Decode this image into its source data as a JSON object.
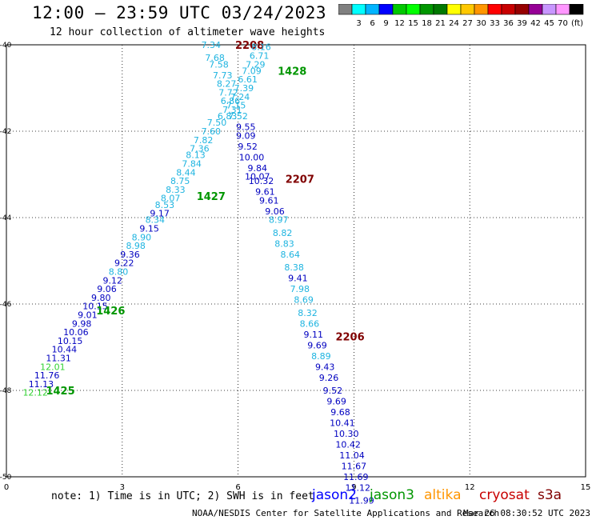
{
  "header": {
    "title": "12:00 – 23:59 UTC 03/24/2023",
    "subtitle": "12 hour collection of altimeter wave heights"
  },
  "color_scale": {
    "unit_label": "(ft)",
    "bins": [
      {
        "label": "",
        "color": "#808080"
      },
      {
        "label": "3",
        "color": "#00ffff"
      },
      {
        "label": "6",
        "color": "#00b4ff"
      },
      {
        "label": "9",
        "color": "#0000ff"
      },
      {
        "label": "12",
        "color": "#00c800"
      },
      {
        "label": "15",
        "color": "#00ff00"
      },
      {
        "label": "18",
        "color": "#009600"
      },
      {
        "label": "21",
        "color": "#007800"
      },
      {
        "label": "24",
        "color": "#ffff00"
      },
      {
        "label": "27",
        "color": "#ffc800"
      },
      {
        "label": "30",
        "color": "#ff9600"
      },
      {
        "label": "33",
        "color": "#ff0000"
      },
      {
        "label": "36",
        "color": "#c80000"
      },
      {
        "label": "39",
        "color": "#960000"
      },
      {
        "label": "42",
        "color": "#960096"
      },
      {
        "label": "45",
        "color": "#c896ff"
      },
      {
        "label": "70",
        "color": "#ff96ff"
      },
      {
        "label": "",
        "color": "#000000"
      }
    ]
  },
  "chart_data": {
    "type": "scatter",
    "title": "12:00 – 23:59 UTC 03/24/2023",
    "subtitle": "12 hour collection of altimeter wave heights",
    "xlim": [
      0,
      15
    ],
    "ylim": [
      -50,
      -40
    ],
    "x_ticks": [
      0,
      3,
      6,
      9,
      12,
      15
    ],
    "y_ticks": [
      -40,
      -42,
      -44,
      -46,
      -48,
      -50
    ],
    "grid": true,
    "colors": {
      "dark": "#0000c0",
      "light": "#1eb4e0",
      "green": "#32d232"
    },
    "tracks": [
      {
        "label": "2208",
        "label_color": "#800000",
        "label_x": 6.3,
        "label_y": -40.0,
        "points": [
          [
            5.3,
            -40.0,
            "7.34",
            "light"
          ],
          [
            5.4,
            -40.3,
            "7.68",
            "light"
          ],
          [
            5.5,
            -40.45,
            "7.58",
            "light"
          ],
          [
            5.6,
            -40.7,
            "7.73",
            "light"
          ],
          [
            5.7,
            -40.9,
            "8.27",
            "light"
          ],
          [
            5.75,
            -41.1,
            "7.72",
            "light"
          ],
          [
            5.8,
            -41.3,
            "6.86",
            "light"
          ],
          [
            5.85,
            -41.5,
            "7.31",
            "light"
          ],
          [
            5.72,
            -41.65,
            "6.83",
            "light"
          ],
          [
            5.45,
            -41.8,
            "7.50",
            "light"
          ],
          [
            5.3,
            -42.0,
            "7.60",
            "light"
          ],
          [
            5.1,
            -42.2,
            "7.82",
            "light"
          ],
          [
            5.0,
            -42.4,
            "7.36",
            "light"
          ],
          [
            4.9,
            -42.55,
            "8.13",
            "light"
          ],
          [
            4.8,
            -42.75,
            "7.84",
            "light"
          ],
          [
            4.65,
            -42.95,
            "8.44",
            "light"
          ],
          [
            4.5,
            -43.15,
            "8.75",
            "light"
          ],
          [
            4.38,
            -43.35,
            "8.33",
            "light"
          ],
          [
            4.25,
            -43.55,
            "8.07",
            "light"
          ],
          [
            4.1,
            -43.7,
            "8.53",
            "light"
          ],
          [
            3.97,
            -43.9,
            "9.17",
            "dark"
          ],
          [
            3.85,
            -44.05,
            "8.34",
            "light"
          ],
          [
            3.7,
            -44.25,
            "9.15",
            "dark"
          ],
          [
            3.5,
            -44.45,
            "8.90",
            "light"
          ],
          [
            3.35,
            -44.65,
            "8.98",
            "light"
          ],
          [
            3.2,
            -44.85,
            "9.36",
            "dark"
          ],
          [
            3.05,
            -45.05,
            "9.22",
            "dark"
          ],
          [
            2.9,
            -45.25,
            "8.80",
            "light"
          ],
          [
            2.75,
            -45.45,
            "9.12",
            "dark"
          ],
          [
            2.6,
            -45.65,
            "9.06",
            "dark"
          ],
          [
            2.45,
            -45.85,
            "9.80",
            "dark"
          ],
          [
            2.3,
            -46.05,
            "10.15",
            "dark"
          ],
          [
            2.1,
            -46.25,
            "9.01",
            "dark"
          ],
          [
            1.95,
            -46.45,
            "9.98",
            "dark"
          ],
          [
            1.8,
            -46.65,
            "10.06",
            "dark"
          ],
          [
            1.65,
            -46.85,
            "10.15",
            "dark"
          ],
          [
            1.5,
            -47.05,
            "10.44",
            "dark"
          ],
          [
            1.35,
            -47.25,
            "11.31",
            "dark"
          ],
          [
            1.2,
            -47.45,
            "12.01",
            "green"
          ],
          [
            1.05,
            -47.65,
            "11.76",
            "dark"
          ],
          [
            0.9,
            -47.85,
            "11.13",
            "dark"
          ],
          [
            0.75,
            -48.05,
            "12.12",
            "green"
          ]
        ]
      },
      {
        "label": "1428",
        "label_color": "#009600",
        "label_x": 7.4,
        "label_y": -40.6,
        "points": [
          [
            6.6,
            -40.05,
            "8.16",
            "light"
          ],
          [
            6.55,
            -40.25,
            "6.71",
            "light"
          ],
          [
            6.45,
            -40.45,
            "7.29",
            "light"
          ],
          [
            6.35,
            -40.6,
            "7.09",
            "light"
          ],
          [
            6.25,
            -40.8,
            "6.61",
            "light"
          ],
          [
            6.15,
            -41.0,
            "7.39",
            "light"
          ],
          [
            6.05,
            -41.2,
            "7.24",
            "light"
          ],
          [
            5.95,
            -41.4,
            "7.15",
            "light"
          ],
          [
            6.0,
            -41.65,
            "7.52",
            "light"
          ]
        ]
      },
      {
        "label": "1427",
        "label_color": "#009600",
        "label_x": 5.3,
        "label_y": -43.5,
        "points": []
      },
      {
        "label": "1426",
        "label_color": "#009600",
        "label_x": 2.7,
        "label_y": -46.15,
        "points": []
      },
      {
        "label": "1425",
        "label_color": "#009600",
        "label_x": 1.4,
        "label_y": -48.0,
        "points": []
      },
      {
        "label": "2207",
        "label_color": "#800000",
        "label_x": 7.6,
        "label_y": -43.1,
        "points": [
          [
            6.2,
            -41.9,
            "9.55",
            "dark"
          ],
          [
            6.2,
            -42.1,
            "9.09",
            "dark"
          ],
          [
            6.25,
            -42.35,
            "9.52",
            "dark"
          ],
          [
            6.35,
            -42.6,
            "10.00",
            "dark"
          ],
          [
            6.5,
            -42.85,
            "9.84",
            "dark"
          ],
          [
            6.5,
            -43.05,
            "10.07",
            "dark"
          ],
          [
            6.6,
            -43.15,
            "10.32",
            "dark"
          ],
          [
            6.7,
            -43.4,
            "9.61",
            "dark"
          ],
          [
            6.8,
            -43.6,
            "9.61",
            "dark"
          ],
          [
            6.95,
            -43.85,
            "9.06",
            "dark"
          ],
          [
            7.05,
            -44.05,
            "8.97",
            "light"
          ],
          [
            7.15,
            -44.35,
            "8.82",
            "light"
          ],
          [
            7.2,
            -44.6,
            "8.83",
            "light"
          ],
          [
            7.35,
            -44.85,
            "8.64",
            "light"
          ],
          [
            7.45,
            -45.15,
            "8.38",
            "light"
          ],
          [
            7.55,
            -45.4,
            "9.41",
            "dark"
          ],
          [
            7.6,
            -45.65,
            "7.98",
            "light"
          ],
          [
            7.7,
            -45.9,
            "8.69",
            "light"
          ],
          [
            7.8,
            -46.2,
            "8.32",
            "light"
          ],
          [
            7.85,
            -46.45,
            "8.66",
            "light"
          ]
        ]
      },
      {
        "label": "2206",
        "label_color": "#800000",
        "label_x": 8.9,
        "label_y": -46.75,
        "points": [
          [
            7.95,
            -46.7,
            "9.11",
            "dark"
          ],
          [
            8.05,
            -46.95,
            "9.69",
            "dark"
          ],
          [
            8.15,
            -47.2,
            "8.89",
            "light"
          ],
          [
            8.25,
            -47.45,
            "9.43",
            "dark"
          ],
          [
            8.35,
            -47.7,
            "9.26",
            "dark"
          ],
          [
            8.45,
            -48.0,
            "9.52",
            "dark"
          ],
          [
            8.55,
            -48.25,
            "9.69",
            "dark"
          ],
          [
            8.65,
            -48.5,
            "9.68",
            "dark"
          ],
          [
            8.7,
            -48.75,
            "10.41",
            "dark"
          ],
          [
            8.8,
            -49.0,
            "10.30",
            "dark"
          ],
          [
            8.85,
            -49.25,
            "10.42",
            "dark"
          ],
          [
            8.95,
            -49.5,
            "11.04",
            "dark"
          ],
          [
            9.0,
            -49.75,
            "11.67",
            "dark"
          ],
          [
            9.05,
            -50.0,
            "11.69",
            "dark"
          ],
          [
            9.1,
            -50.25,
            "11.12",
            "dark"
          ],
          [
            9.2,
            -50.55,
            "11.99",
            "dark"
          ]
        ]
      }
    ]
  },
  "footer": {
    "note": "note: 1) Time is in UTC; 2) SWH is in feet",
    "satellites": [
      {
        "name": "jason2",
        "color": "#0000ff"
      },
      {
        "name": "jason3",
        "color": "#009600"
      },
      {
        "name": "altika",
        "color": "#ff9600"
      },
      {
        "name": "cryosat",
        "color": "#c80000"
      },
      {
        "name": "s3a",
        "color": "#800000"
      }
    ],
    "credit": "NOAA/NESDIS Center for Satellite Applications and Research",
    "timestamp": "Mar 26 08:30:52 UTC 2023"
  }
}
